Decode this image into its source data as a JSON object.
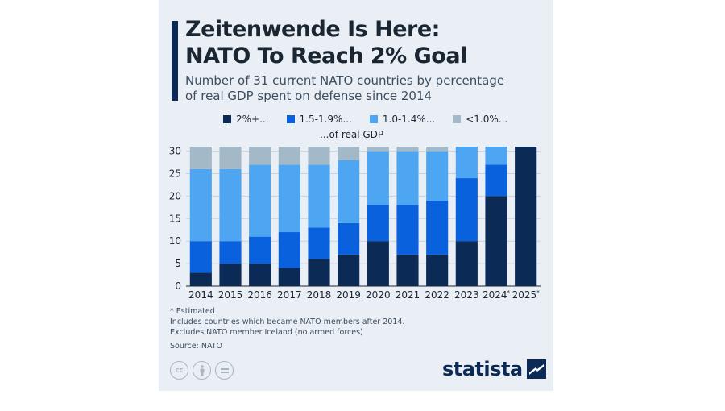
{
  "title_line1": "Zeitenwende Is Here:",
  "title_line2": "NATO To Reach 2% Goal",
  "subtitle_line1": "Number of 31 current NATO countries by percentage",
  "subtitle_line2": "of real GDP spent on defense since 2014",
  "legend_suffix": "...of real GDP",
  "notes": [
    "* Estimated",
    "Includes countries which became NATO members after 2014.",
    "Excludes NATO member Iceland (no armed forces)"
  ],
  "source": "Source: NATO",
  "brand": "statista",
  "cc_icons": [
    "cc-icon",
    "attribution-icon",
    "no-derivatives-icon"
  ],
  "chart_data": {
    "type": "bar",
    "stacked": true,
    "categories": [
      "2014",
      "2015",
      "2016",
      "2017",
      "2018",
      "2019",
      "2020",
      "2021",
      "2022",
      "2023",
      "2024*",
      "2025*"
    ],
    "series": [
      {
        "name": "2%+...",
        "color": "#0b2a55",
        "values": [
          3,
          5,
          5,
          4,
          6,
          7,
          10,
          7,
          7,
          10,
          20,
          31
        ]
      },
      {
        "name": "1.5-1.9%...",
        "color": "#0a61dd",
        "values": [
          7,
          5,
          6,
          8,
          7,
          7,
          8,
          11,
          12,
          14,
          7,
          0
        ]
      },
      {
        "name": "1.0-1.4%...",
        "color": "#4ea6f3",
        "values": [
          16,
          16,
          16,
          15,
          14,
          14,
          12,
          12,
          11,
          7,
          4,
          0
        ]
      },
      {
        "name": "<1.0%...",
        "color": "#a4b9c7",
        "values": [
          5,
          5,
          4,
          4,
          4,
          3,
          1,
          1,
          1,
          0,
          0,
          0
        ]
      }
    ],
    "ylim": [
      0,
      31
    ],
    "yticks": [
      0,
      5,
      10,
      15,
      20,
      25,
      30
    ],
    "grid": true,
    "legend_position": "top"
  }
}
